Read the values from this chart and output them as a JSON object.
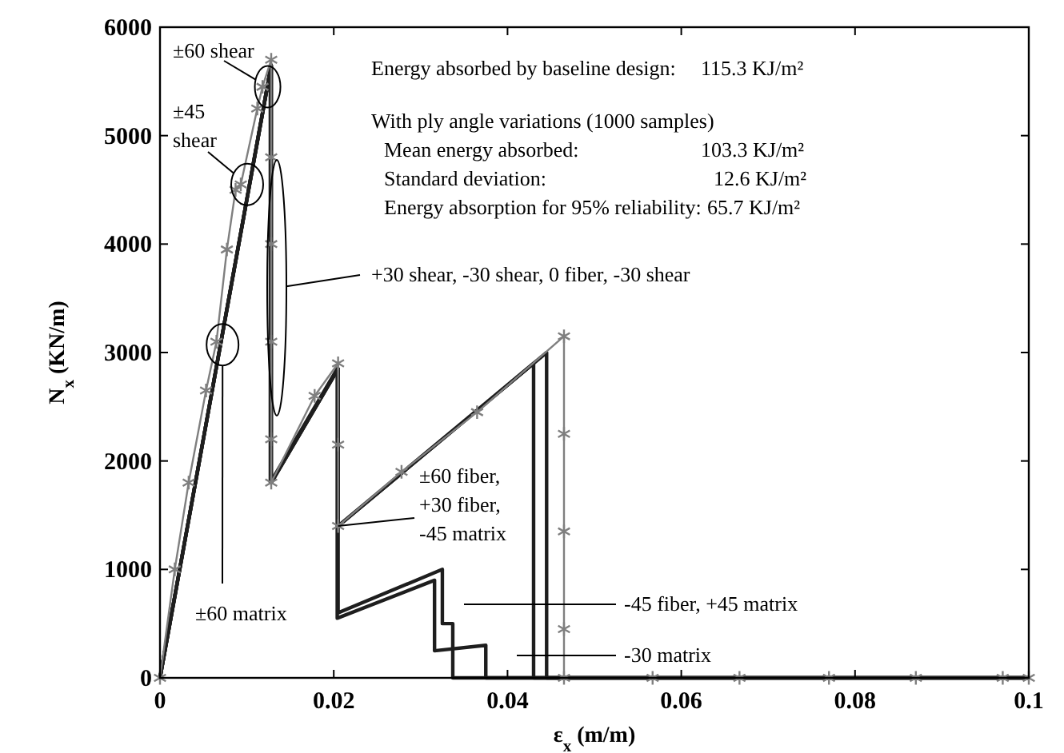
{
  "chart_data": {
    "type": "line",
    "xlabel": "ε$_{x}$ (m/m)",
    "ylabel": "N$_{x}$ (KN/m)",
    "xlim": [
      0,
      0.1
    ],
    "ylim": [
      0,
      6000
    ],
    "xticks": [
      0,
      0.02,
      0.04,
      0.06,
      0.08,
      0.1
    ],
    "yticks": [
      0,
      1000,
      2000,
      3000,
      4000,
      5000,
      6000
    ],
    "grid": false,
    "line_style": "solid",
    "series": [
      {
        "color": "#1e1e1e",
        "marker": "none",
        "x": [
          0,
          0.0128,
          0.0128,
          0.0205,
          0.0205,
          0.0445,
          0.0445,
          0.1
        ],
        "values": [
          0,
          5650,
          1800,
          2850,
          1400,
          3000,
          0,
          0
        ]
      },
      {
        "color": "#1e1e1e",
        "marker": "none",
        "x": [
          0,
          0.0128,
          0.0128,
          0.0205,
          0.0205,
          0.0325,
          0.0325,
          0.0337,
          0.0337,
          0.1
        ],
        "values": [
          0,
          5650,
          1800,
          2850,
          600,
          1000,
          500,
          500,
          0,
          0
        ]
      },
      {
        "color": "#1e1e1e",
        "marker": "none",
        "x": [
          0,
          0.0127,
          0.0127,
          0.0204,
          0.0204,
          0.0316,
          0.0316,
          0.0375,
          0.0375,
          0.1
        ],
        "values": [
          0,
          5600,
          1800,
          2850,
          550,
          900,
          250,
          300,
          0,
          0
        ]
      },
      {
        "color": "#1e1e1e",
        "marker": "none",
        "x": [
          0,
          0.0128,
          0.0128,
          0.0205,
          0.0205,
          0.043,
          0.043,
          0.1
        ],
        "values": [
          0,
          5650,
          1800,
          2850,
          1400,
          2900,
          0,
          0
        ]
      },
      {
        "color": "#7f7f7f",
        "marker": "cross",
        "x": [
          0,
          0.0017,
          0.0033,
          0.0053,
          0.0065,
          0.0077,
          0.0087,
          0.0093,
          0.0112,
          0.0118,
          0.0128,
          0.0128,
          0.0128,
          0.0128,
          0.0128,
          0.0128,
          0.0178,
          0.0205,
          0.0205,
          0.0205,
          0.0278,
          0.0365,
          0.0465,
          0.0465,
          0.0465,
          0.0465,
          0.0465,
          0.0567,
          0.0667,
          0.077,
          0.087,
          0.097,
          0.1
        ],
        "values": [
          0,
          1000,
          1800,
          2650,
          3100,
          3950,
          4500,
          4550,
          5250,
          5450,
          5700,
          4800,
          4000,
          3100,
          2200,
          1800,
          2600,
          2900,
          2150,
          1400,
          1900,
          2450,
          3150,
          2250,
          1350,
          450,
          0,
          0,
          0,
          0,
          0,
          0,
          0
        ]
      }
    ],
    "annotations": [
      {
        "text": "±60 shear",
        "x": 0.0118,
        "y": 5450
      },
      {
        "text": "±45 shear",
        "x": 0.0093,
        "y": 4550
      },
      "+30 shear, -30 shear, 0 fiber, -30 shear",
      {
        "text": "±60 matrix",
        "x": 0.0072,
        "y": 2880
      },
      {
        "text": "±60 fiber, +30 fiber, -45 matrix",
        "x": 0.0205,
        "y": 1400
      },
      "-45 fiber, +45 matrix",
      "-30 matrix",
      "Energy absorbed by baseline design:",
      "115.3 KJ/m²",
      "With ply angle variations (1000 samples)",
      "Mean energy absorbed:",
      "103.3 KJ/m²",
      "Standard deviation:",
      "12.6  KJ/m²",
      "Energy absorption for 95% reliability:",
      "65.7  KJ/m²"
    ]
  }
}
